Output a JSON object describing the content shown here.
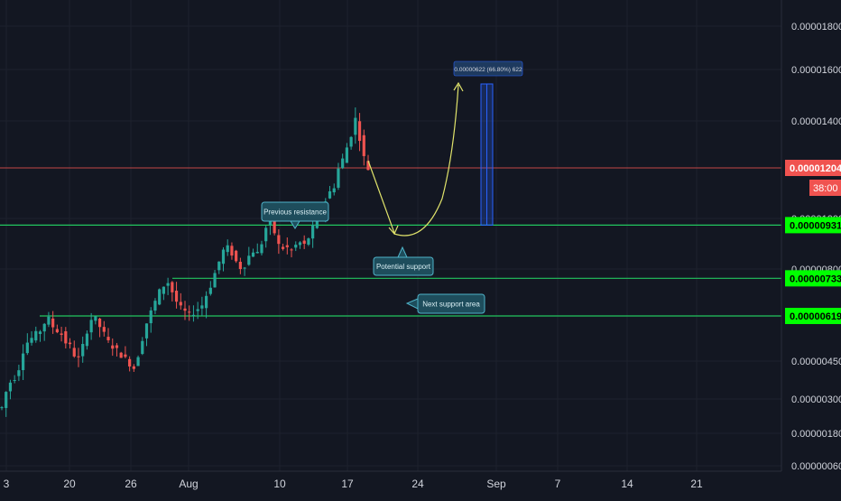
{
  "chart_data": {
    "type": "candlestick",
    "symbol_currency": "",
    "x_labels": [
      "3",
      "20",
      "26",
      "Aug",
      "10",
      "17",
      "24",
      "Sep",
      "7",
      "14",
      "21"
    ],
    "y_labels": [
      "0.00001800",
      "0.00001600",
      "0.00001400",
      "0.00001000",
      "0.00000800",
      "0.00000450",
      "0.00000300",
      "0.00000180",
      "0.00000060"
    ],
    "y_scale": "log",
    "y_range": [
      6e-07,
      2e-05
    ],
    "current_price": {
      "label": "0.00001204",
      "value": 1.204e-05,
      "countdown": "38:00",
      "color": "#f05350"
    },
    "levels": [
      {
        "label": "0.00000931",
        "value": 9.31e-06,
        "color": "#22c55e",
        "badge_color": "#00ff00"
      },
      {
        "label": "0.00000733",
        "value": 7.33e-06,
        "color": "#22c55e",
        "badge_color": "#00ff00"
      },
      {
        "label": "0.00000619",
        "value": 6.19e-06,
        "color": "#22c55e",
        "badge_color": "#00ff00"
      }
    ],
    "annotations": [
      {
        "text": "Previous resistance",
        "pointer": "down"
      },
      {
        "text": "Potential support",
        "pointer": "up"
      },
      {
        "text": "Next support area",
        "pointer": "left"
      }
    ],
    "measure_label": "0.00000622 (66.80%) 622",
    "price_path": [
      4.1e-06,
      4.4e-06,
      4.6e-06,
      4.7e-06,
      4.9e-06,
      5.3e-06,
      5.5e-06,
      5.6e-06,
      5.7e-06,
      5.8e-06,
      6e-06,
      6.1e-06,
      5.9e-06,
      5.8e-06,
      5.7e-06,
      5.5e-06,
      5.4e-06,
      5.2e-06,
      5.1e-06,
      5.4e-06,
      5.8e-06,
      6.1e-06,
      6.1e-06,
      5.9e-06,
      5.7e-06,
      5.5e-06,
      5.4e-06,
      5.3e-06,
      5.2e-06,
      5.1e-06,
      5e-06,
      4.9e-06,
      5.2e-06,
      5.6e-06,
      6e-06,
      6.3e-06,
      6.6e-06,
      6.9e-06,
      7.1e-06,
      7.2e-06,
      6.9e-06,
      6.6e-06,
      6.4e-06,
      6.3e-06,
      6.2e-06,
      6.3e-06,
      6.4e-06,
      6.5e-06,
      6.8e-06,
      7.1e-06,
      7.5e-06,
      7.9e-06,
      8.3e-06,
      8.4e-06,
      8.2e-06,
      7.9e-06,
      7.7e-06,
      7.8e-06,
      8.1e-06,
      8.3e-06,
      8.2e-06,
      8.6e-06,
      9.2e-06,
      9.4e-06,
      9e-06,
      8.5e-06,
      8.4e-06,
      8.4e-06,
      8.3e-06,
      8.5e-06,
      8.6e-06,
      8.5e-06,
      8.8e-06,
      9.2e-06,
      9.6e-06,
      1e-05,
      1.04e-05,
      1.08e-05,
      1.11e-05,
      1.2e-05,
      1.25e-05,
      1.32e-05,
      1.4e-05,
      1.5e-05,
      1.38e-05,
      1.26e-05,
      1.2e-05
    ]
  }
}
